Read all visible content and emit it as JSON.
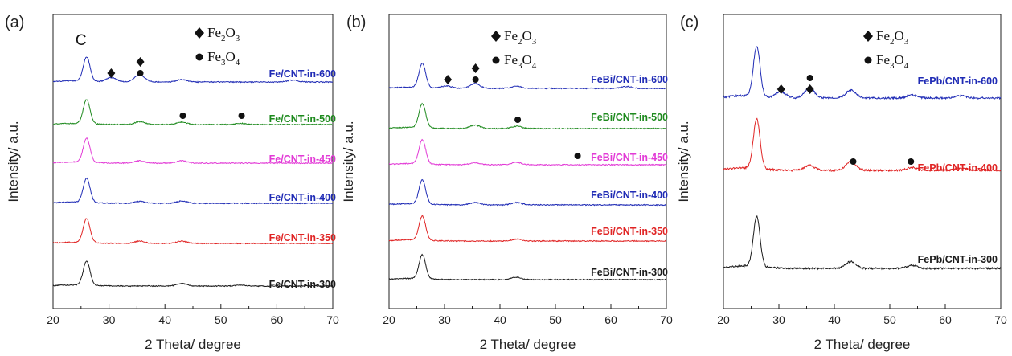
{
  "chart_data": [
    {
      "panel": "(a)",
      "type": "line",
      "xlabel": "2 Theta/ degree",
      "ylabel": "Intensity/ a.u.",
      "xlim": [
        20,
        70
      ],
      "xticks": [
        20,
        30,
        40,
        50,
        60,
        70
      ],
      "peak_label": "C",
      "legend": [
        {
          "marker": "diamond",
          "formula": [
            "Fe",
            "2",
            "O",
            "3"
          ]
        },
        {
          "marker": "circle",
          "formula": [
            "Fe",
            "3",
            "O",
            "4"
          ]
        }
      ],
      "series": [
        {
          "name": "Fe/CNT-in-600",
          "color": "#1f2bb5",
          "peaks": [
            [
              26,
              1.0
            ],
            [
              30.4,
              0.18
            ],
            [
              35.5,
              0.3
            ],
            [
              43,
              0.1
            ],
            [
              62.8,
              0.08
            ]
          ]
        },
        {
          "name": "Fe/CNT-in-500",
          "color": "#1e8a1e",
          "peaks": [
            [
              26,
              1.0
            ],
            [
              35.5,
              0.12
            ],
            [
              43,
              0.1
            ],
            [
              53.6,
              0.05
            ]
          ]
        },
        {
          "name": "Fe/CNT-in-450",
          "color": "#e23ad6",
          "peaks": [
            [
              26,
              1.0
            ],
            [
              35.5,
              0.1
            ],
            [
              43,
              0.1
            ]
          ]
        },
        {
          "name": "Fe/CNT-in-400",
          "color": "#1f2bb5",
          "peaks": [
            [
              26,
              1.0
            ],
            [
              35.5,
              0.08
            ],
            [
              43,
              0.1
            ]
          ]
        },
        {
          "name": "Fe/CNT-in-350",
          "color": "#e02424",
          "peaks": [
            [
              26,
              1.0
            ],
            [
              35.5,
              0.1
            ],
            [
              43,
              0.1
            ]
          ]
        },
        {
          "name": "Fe/CNT-in-300",
          "color": "#1a1a1a",
          "peaks": [
            [
              26,
              1.0
            ],
            [
              43,
              0.1
            ],
            [
              53.6,
              0.04
            ]
          ]
        }
      ],
      "markers": [
        {
          "type": "diamond",
          "x": 30.4,
          "series": 0
        },
        {
          "type": "diamond",
          "x": 35.6,
          "series": 0,
          "stack": 1
        },
        {
          "type": "circle",
          "x": 35.6,
          "series": 0
        },
        {
          "type": "circle",
          "x": 43.2,
          "series": 1
        },
        {
          "type": "circle",
          "x": 53.7,
          "series": 1
        }
      ]
    },
    {
      "panel": "(b)",
      "type": "line",
      "xlabel": "2 Theta/ degree",
      "ylabel": "Intensity/ a.u.",
      "xlim": [
        20,
        70
      ],
      "xticks": [
        20,
        30,
        40,
        50,
        60,
        70
      ],
      "legend": [
        {
          "marker": "diamond",
          "formula": [
            "Fe",
            "2",
            "O",
            "3"
          ]
        },
        {
          "marker": "circle",
          "formula": [
            "Fe",
            "3",
            "O",
            "4"
          ]
        }
      ],
      "series": [
        {
          "name": "FeBi/CNT-in-600",
          "color": "#1f2bb5",
          "peaks": [
            [
              26,
              1.0
            ],
            [
              30.4,
              0.1
            ],
            [
              35.5,
              0.2
            ],
            [
              43,
              0.1
            ],
            [
              62.8,
              0.08
            ]
          ]
        },
        {
          "name": "FeBi/CNT-in-500",
          "color": "#1e8a1e",
          "peaks": [
            [
              26,
              1.0
            ],
            [
              35.5,
              0.14
            ],
            [
              43,
              0.1
            ]
          ]
        },
        {
          "name": "FeBi/CNT-in-450",
          "color": "#e23ad6",
          "peaks": [
            [
              26,
              1.0
            ],
            [
              35.5,
              0.08
            ],
            [
              43,
              0.1
            ]
          ]
        },
        {
          "name": "FeBi/CNT-in-400",
          "color": "#1f2bb5",
          "peaks": [
            [
              26,
              1.0
            ],
            [
              35.5,
              0.1
            ],
            [
              43,
              0.1
            ]
          ]
        },
        {
          "name": "FeBi/CNT-in-350",
          "color": "#e02424",
          "peaks": [
            [
              26,
              1.0
            ],
            [
              43,
              0.08
            ]
          ]
        },
        {
          "name": "FeBi/CNT-in-300",
          "color": "#1a1a1a",
          "peaks": [
            [
              26,
              1.0
            ],
            [
              43,
              0.1
            ]
          ]
        }
      ],
      "markers": [
        {
          "type": "diamond",
          "x": 30.6,
          "series": 0
        },
        {
          "type": "diamond",
          "x": 35.6,
          "series": 0,
          "stack": 1
        },
        {
          "type": "circle",
          "x": 35.6,
          "series": 0
        },
        {
          "type": "circle",
          "x": 43.2,
          "series": 1
        },
        {
          "type": "circle",
          "x": 54.0,
          "series": 2
        }
      ]
    },
    {
      "panel": "(c)",
      "type": "line",
      "xlabel": "2 Theta/ degree",
      "ylabel": "Intensity/ a.u.",
      "xlim": [
        20,
        70
      ],
      "xticks": [
        20,
        30,
        40,
        50,
        60,
        70
      ],
      "legend": [
        {
          "marker": "diamond",
          "formula": [
            "Fe",
            "2",
            "O",
            "3"
          ]
        },
        {
          "marker": "circle",
          "formula": [
            "Fe",
            "3",
            "O",
            "4"
          ]
        }
      ],
      "series": [
        {
          "name": "FePb/CNT-in-600",
          "color": "#1f2bb5",
          "peaks": [
            [
              26,
              1.0
            ],
            [
              30.4,
              0.12
            ],
            [
              35.5,
              0.2
            ],
            [
              43,
              0.16
            ],
            [
              54,
              0.06
            ],
            [
              62.8,
              0.05
            ]
          ]
        },
        {
          "name": "FePb/CNT-in-400",
          "color": "#e02424",
          "peaks": [
            [
              26,
              1.0
            ],
            [
              35.5,
              0.1
            ],
            [
              43,
              0.18
            ],
            [
              54,
              0.06
            ],
            [
              62.8,
              0.05
            ]
          ]
        },
        {
          "name": "FePb/CNT-in-300",
          "color": "#1a1a1a",
          "peaks": [
            [
              26,
              1.0
            ],
            [
              43,
              0.14
            ],
            [
              54,
              0.06
            ]
          ]
        }
      ],
      "markers": [
        {
          "type": "diamond",
          "x": 30.4,
          "series": 0
        },
        {
          "type": "diamond",
          "x": 35.6,
          "series": 0
        },
        {
          "type": "circle",
          "x": 35.6,
          "series": 0,
          "stack": 1
        },
        {
          "type": "circle",
          "x": 43.4,
          "series": 1
        },
        {
          "type": "circle",
          "x": 53.8,
          "series": 1
        }
      ]
    }
  ]
}
